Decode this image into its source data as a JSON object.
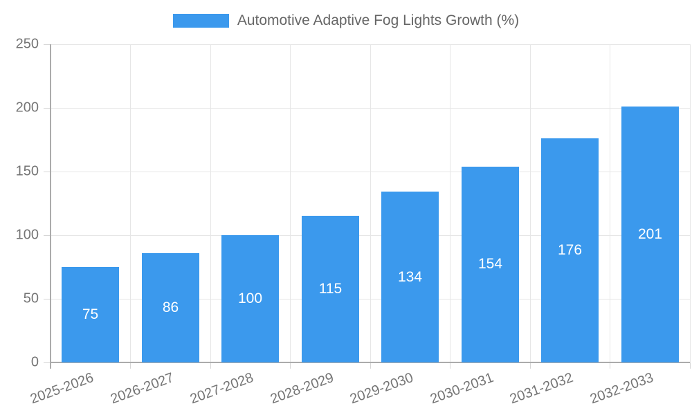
{
  "chart_data": {
    "type": "bar",
    "title": "Automotive Adaptive Fog Lights Growth (%)",
    "categories": [
      "2025-2026",
      "2026-2027",
      "2027-2028",
      "2028-2029",
      "2029-2030",
      "2030-2031",
      "2031-2032",
      "2032-2033"
    ],
    "values": [
      75,
      86,
      100,
      115,
      134,
      154,
      176,
      201
    ],
    "xlabel": "",
    "ylabel": "",
    "ylim": [
      0,
      250
    ],
    "yticks": [
      0,
      50,
      100,
      150,
      200,
      250
    ],
    "grid": true,
    "legend_position": "top",
    "value_labels": "white, centered inside bars",
    "colors": {
      "bar": "#3b99ed",
      "value_label": "#ffffff",
      "gridline": "#e6e6e6",
      "axis": "#ababab",
      "tick": "#d6d6d6",
      "tick_label": "#757575",
      "title": "#666666",
      "background": "#ffffff"
    }
  }
}
